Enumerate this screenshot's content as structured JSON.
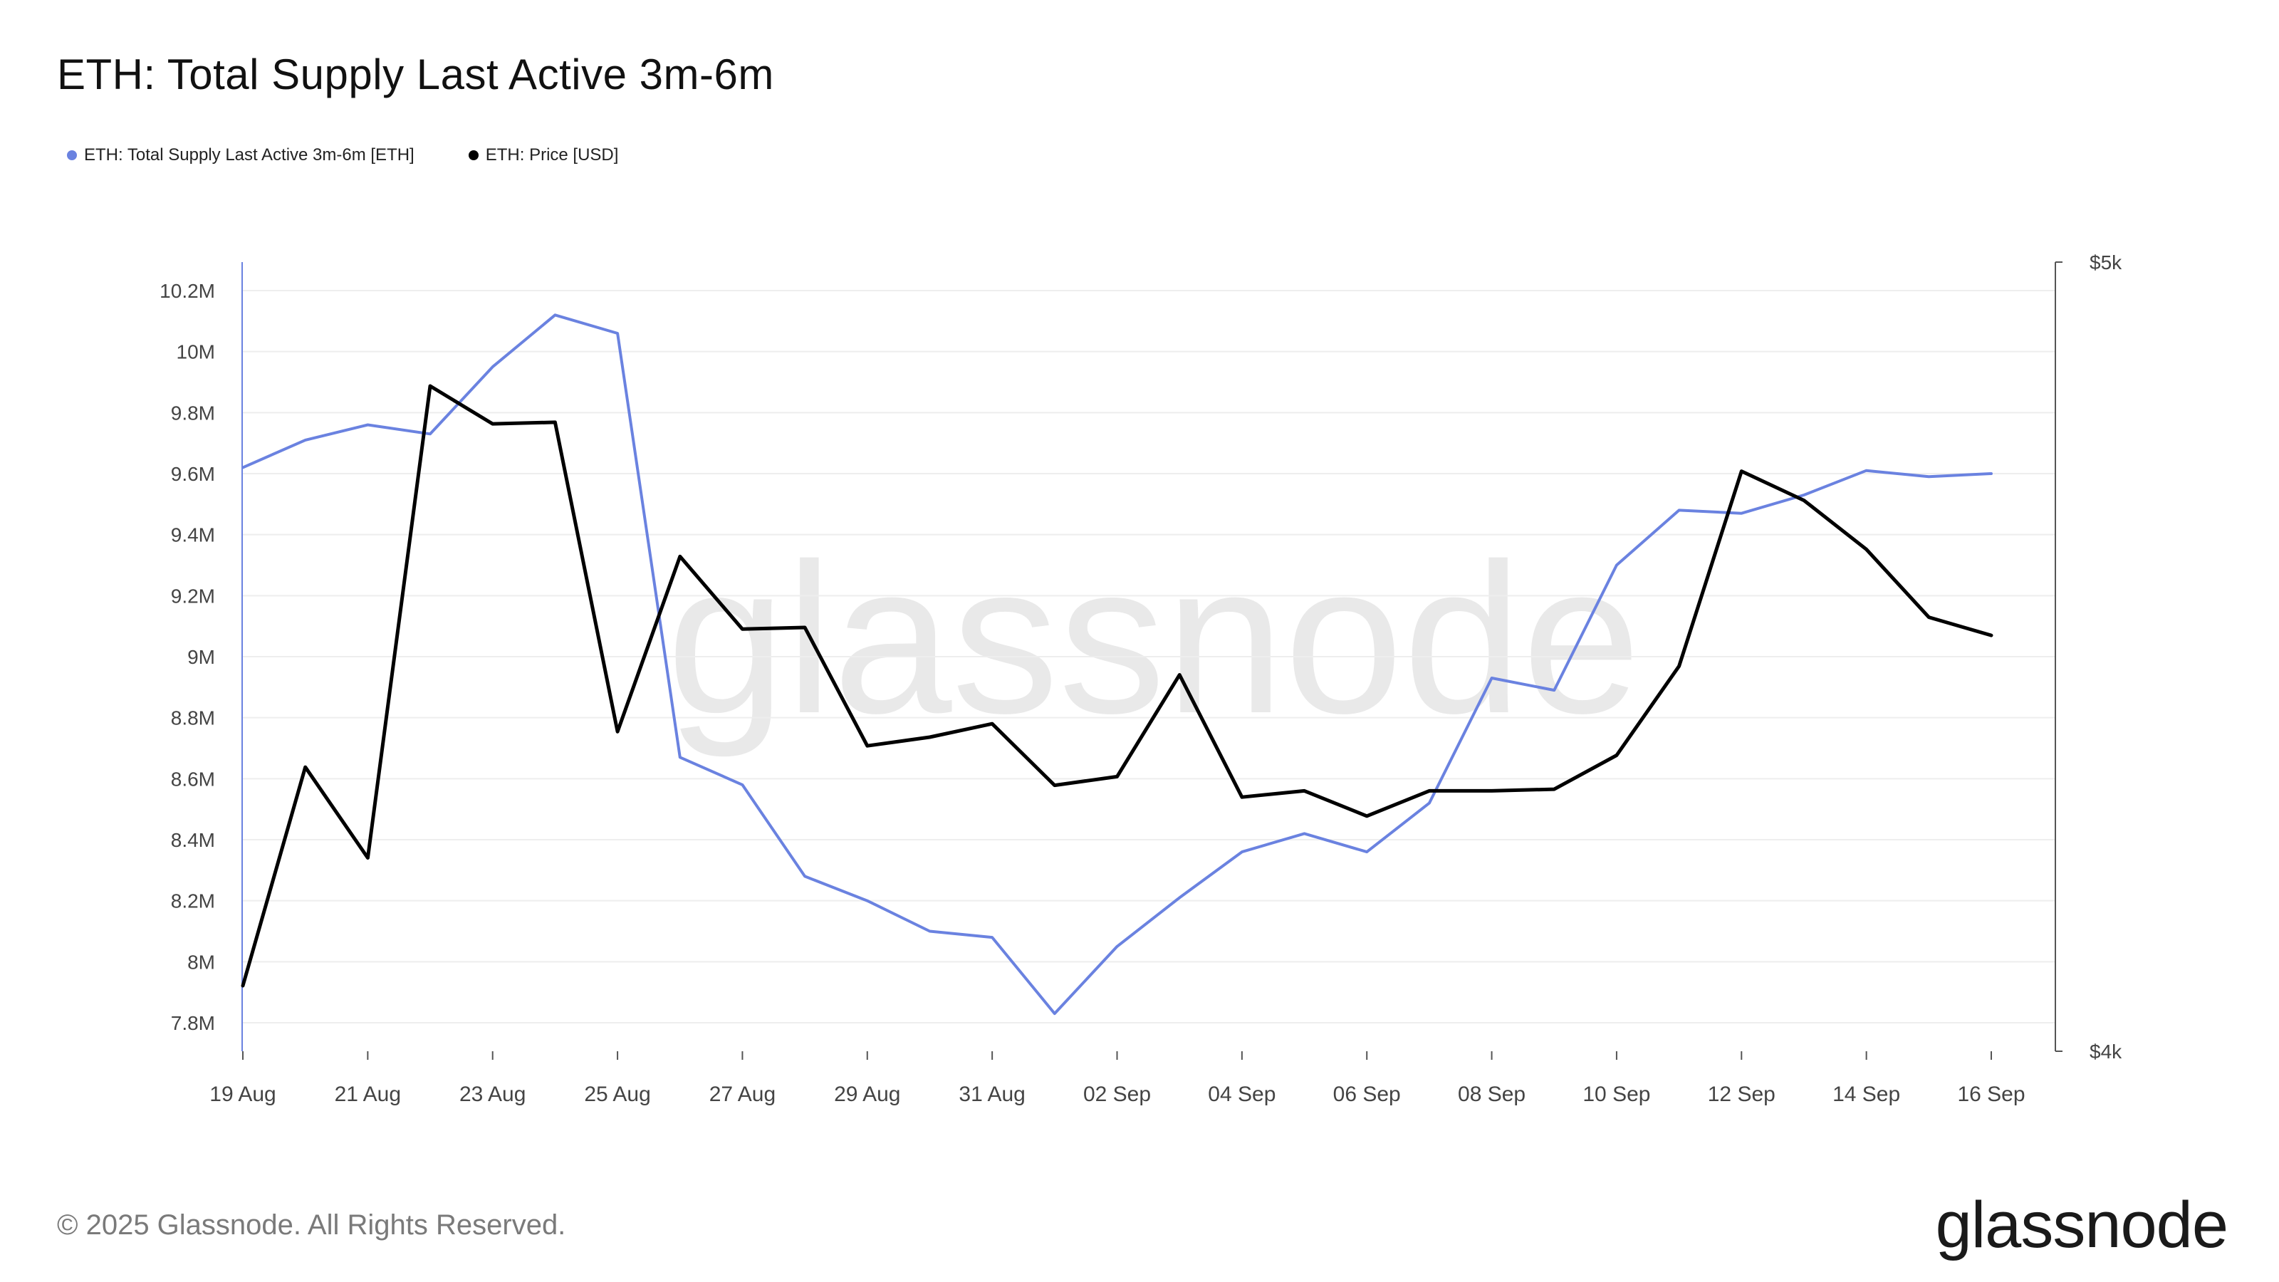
{
  "title": "ETH: Total Supply Last Active 3m-6m",
  "legend": [
    {
      "label": "ETH: Total Supply Last Active 3m-6m [ETH]",
      "color": "#6a82e0"
    },
    {
      "label": "ETH: Price [USD]",
      "color": "#000000"
    }
  ],
  "footer": "© 2025 Glassnode. All Rights Reserved.",
  "brand": "glassnode",
  "watermark": "glassnode",
  "chart_data": {
    "type": "line",
    "title": "ETH: Total Supply Last Active 3m-6m",
    "grid": true,
    "x_ticks": [
      "19 Aug",
      "21 Aug",
      "23 Aug",
      "25 Aug",
      "27 Aug",
      "29 Aug",
      "31 Aug",
      "02 Sep",
      "04 Sep",
      "06 Sep",
      "08 Sep",
      "10 Sep",
      "12 Sep",
      "14 Sep",
      "16 Sep"
    ],
    "x": [
      "19 Aug",
      "20 Aug",
      "21 Aug",
      "22 Aug",
      "23 Aug",
      "24 Aug",
      "25 Aug",
      "26 Aug",
      "27 Aug",
      "28 Aug",
      "29 Aug",
      "30 Aug",
      "31 Aug",
      "01 Sep",
      "02 Sep",
      "03 Sep",
      "04 Sep",
      "05 Sep",
      "06 Sep",
      "07 Sep",
      "08 Sep",
      "09 Sep",
      "10 Sep",
      "11 Sep",
      "12 Sep",
      "13 Sep",
      "14 Sep",
      "15 Sep",
      "16 Sep"
    ],
    "y_left": {
      "ylim": [
        7.7,
        10.3
      ],
      "ticks": [
        7.8,
        8.0,
        8.2,
        8.4,
        8.6,
        8.8,
        9.0,
        9.2,
        9.4,
        9.6,
        9.8,
        10.0,
        10.2
      ],
      "tick_labels": [
        "7.8M",
        "8M",
        "8.2M",
        "8.4M",
        "8.6M",
        "8.8M",
        "9M",
        "9.2M",
        "9.4M",
        "9.6M",
        "9.8M",
        "10M",
        "10.2M"
      ]
    },
    "y_right": {
      "ylim": [
        4000,
        5000
      ],
      "ticks": [
        4000,
        5000
      ],
      "tick_labels": [
        "$4k",
        "$5k"
      ]
    },
    "series": [
      {
        "name": "ETH: Total Supply Last Active 3m-6m [ETH]",
        "axis": "left",
        "color": "#6a82e0",
        "values": [
          9.62,
          9.71,
          9.76,
          9.73,
          9.95,
          10.12,
          10.06,
          8.67,
          8.58,
          8.28,
          8.2,
          8.1,
          8.08,
          7.83,
          8.05,
          8.21,
          8.36,
          8.42,
          8.36,
          8.52,
          8.93,
          8.89,
          9.3,
          9.48,
          9.47,
          9.53,
          9.61,
          9.59,
          9.6
        ]
      },
      {
        "name": "ETH: Price [USD]",
        "axis": "right",
        "color": "#000000",
        "values": [
          4083,
          4360,
          4245,
          4843,
          4795,
          4797,
          4405,
          4627,
          4535,
          4537,
          4387,
          4398,
          4415,
          4337,
          4348,
          4477,
          4322,
          4330,
          4298,
          4330,
          4330,
          4332,
          4375,
          4488,
          4735,
          4698,
          4636,
          4550,
          4527
        ]
      }
    ]
  }
}
